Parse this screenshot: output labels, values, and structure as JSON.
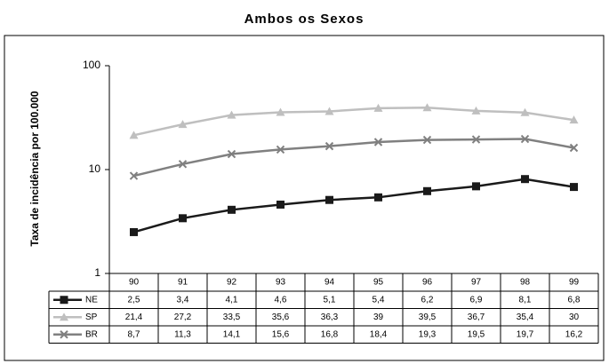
{
  "chart_data": {
    "type": "line",
    "title": "Ambos os Sexos",
    "y_label": "Taxa de incidência por 100.000",
    "categories": [
      "90",
      "91",
      "92",
      "93",
      "94",
      "95",
      "96",
      "97",
      "98",
      "99"
    ],
    "series": [
      {
        "name": "NE",
        "color": "#1a1a1a",
        "marker": "square",
        "values": [
          2.5,
          3.4,
          4.1,
          4.6,
          5.1,
          5.4,
          6.2,
          6.9,
          8.1,
          6.8
        ],
        "value_labels": [
          "2,5",
          "3,4",
          "4,1",
          "4,6",
          "5,1",
          "5,4",
          "6,2",
          "6,9",
          "8,1",
          "6,8"
        ]
      },
      {
        "name": "SP",
        "color": "#bfbfbf",
        "marker": "triangle",
        "values": [
          21.4,
          27.2,
          33.5,
          35.6,
          36.3,
          39,
          39.5,
          36.7,
          35.4,
          30
        ],
        "value_labels": [
          "21,4",
          "27,2",
          "33,5",
          "35,6",
          "36,3",
          "39",
          "39,5",
          "36,7",
          "35,4",
          "30"
        ]
      },
      {
        "name": "BR",
        "color": "#808080",
        "marker": "x",
        "values": [
          8.7,
          11.3,
          14.1,
          15.6,
          16.8,
          18.4,
          19.3,
          19.5,
          19.7,
          16.2
        ],
        "value_labels": [
          "8,7",
          "11,3",
          "14,1",
          "15,6",
          "16,8",
          "18,4",
          "19,3",
          "19,5",
          "19,7",
          "16,2"
        ]
      }
    ],
    "ylim": [
      1,
      100
    ],
    "yticks": [
      1,
      10,
      100
    ],
    "log_y": true
  }
}
